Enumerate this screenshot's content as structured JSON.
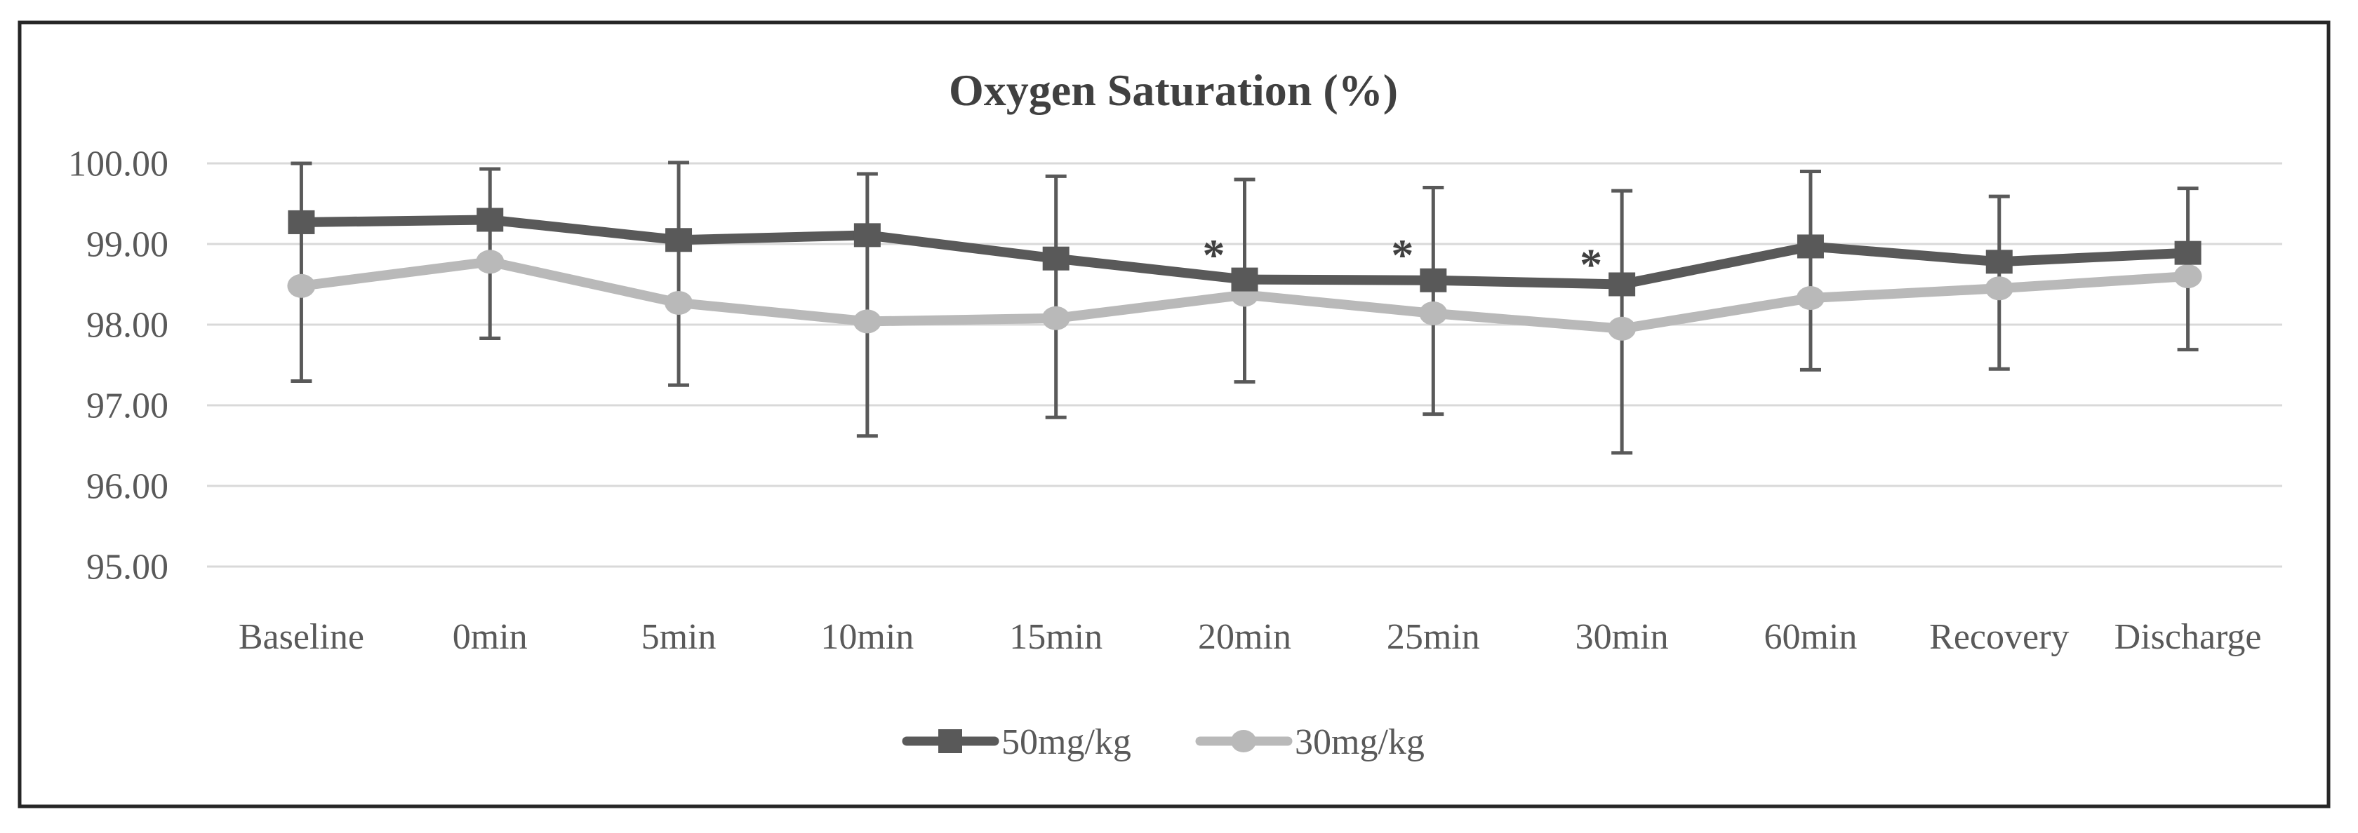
{
  "chart_data": {
    "type": "line",
    "title": "Oxygen Saturation (%)",
    "categories": [
      "Baseline",
      "0min",
      "5min",
      "10min",
      "15min",
      "20min",
      "25min",
      "30min",
      "60min",
      "Recovery",
      "Discharge"
    ],
    "y_axis": {
      "min": 95,
      "max": 100,
      "step": 1,
      "tick_labels": [
        "100.00",
        "99.00",
        "98.00",
        "97.00",
        "96.00",
        "95.00"
      ],
      "tick_values": [
        100,
        99,
        98,
        97,
        96,
        95
      ]
    },
    "grid": "horizontal-only",
    "legend_position": "bottom-center",
    "series": [
      {
        "name": "50mg/kg",
        "marker": "square",
        "color": "#595959",
        "values": [
          99.27,
          99.3,
          99.05,
          99.11,
          98.82,
          98.56,
          98.55,
          98.5,
          98.97,
          98.78,
          98.89
        ]
      },
      {
        "name": "30mg/kg",
        "marker": "circle",
        "color": "#b9b9b9",
        "values": [
          98.48,
          98.78,
          98.27,
          98.04,
          98.08,
          98.37,
          98.14,
          97.95,
          98.33,
          98.45,
          98.6
        ]
      }
    ],
    "error_bars": {
      "color": "#595959",
      "top": [
        100.0,
        99.93,
        100.01,
        99.87,
        99.84,
        99.8,
        99.7,
        99.66,
        99.9,
        99.59,
        99.69
      ],
      "bottom": [
        97.3,
        97.83,
        97.25,
        96.62,
        96.85,
        97.29,
        96.89,
        96.41,
        97.44,
        97.45,
        97.69
      ]
    },
    "annotations": [
      {
        "text": "*",
        "category_index": 5,
        "value": 98.68
      },
      {
        "text": "*",
        "category_index": 6,
        "value": 98.68
      },
      {
        "text": "*",
        "category_index": 7,
        "value": 98.56
      }
    ],
    "colors": {
      "background": "#ffffff",
      "border": "#262626",
      "gridline": "#d9d9d9",
      "title_text": "#404040",
      "axis_text": "#595959",
      "annotation_text": "#404040"
    }
  }
}
